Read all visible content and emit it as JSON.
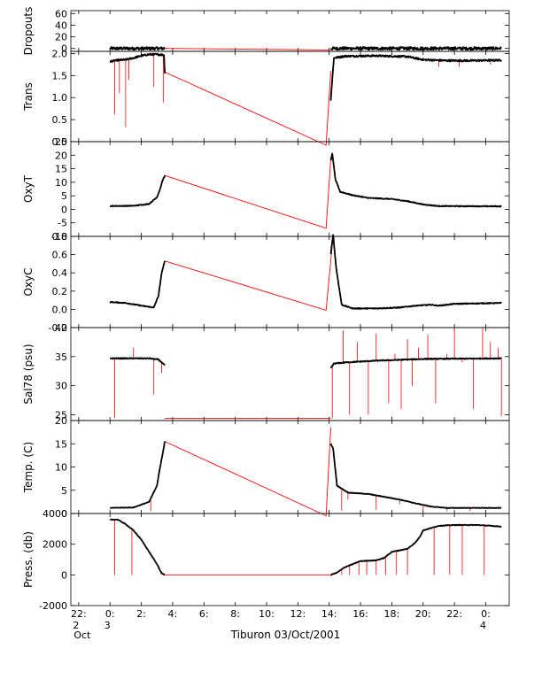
{
  "chart_data": {
    "type": "line",
    "x_axis": {
      "title": "Tiburon 03/Oct/2001",
      "range_hours": [
        -2.5,
        25.5
      ],
      "ticks": [
        {
          "h": -2,
          "label": "22:",
          "sub": "2",
          "sub2": "Oct"
        },
        {
          "h": 0,
          "label": "0:",
          "sub": "3"
        },
        {
          "h": 2,
          "label": "2:"
        },
        {
          "h": 4,
          "label": "4:"
        },
        {
          "h": 6,
          "label": "6:"
        },
        {
          "h": 8,
          "label": "8:"
        },
        {
          "h": 10,
          "label": "10:"
        },
        {
          "h": 12,
          "label": "12:"
        },
        {
          "h": 14,
          "label": "14:"
        },
        {
          "h": 16,
          "label": "16:"
        },
        {
          "h": 18,
          "label": "18:"
        },
        {
          "h": 20,
          "label": "20:"
        },
        {
          "h": 22,
          "label": "22:"
        },
        {
          "h": 24,
          "label": "0:",
          "sub": "4"
        }
      ]
    },
    "colors": {
      "data": "#000000",
      "flagged": "#ff0000"
    },
    "panels": [
      {
        "ylabel": "Dropouts",
        "ylim": [
          -5,
          65
        ],
        "yticks": [
          {
            "v": 0,
            "label": "0"
          },
          {
            "v": 20,
            "label": "20"
          },
          {
            "v": 40,
            "label": "40"
          },
          {
            "v": 60,
            "label": "60"
          }
        ],
        "black": [
          [
            [
              0,
              0
            ],
            [
              3.5,
              0
            ]
          ],
          [
            [
              14.1,
              0
            ],
            [
              25,
              0
            ]
          ]
        ],
        "red_line": [
          [
            3.5,
            0
          ],
          [
            14.1,
            -2.5
          ]
        ],
        "spikes": [],
        "noise": 2.5
      },
      {
        "ylabel": "Trans",
        "ylim": [
          0,
          2.05
        ],
        "yticks": [
          {
            "v": 0,
            "label": "0.0"
          },
          {
            "v": 0.5,
            "label": "0.5"
          },
          {
            "v": 1,
            "label": "1.0"
          },
          {
            "v": 1.5,
            "label": "1.5"
          },
          {
            "v": 2,
            "label": "2.0"
          }
        ],
        "black": [
          [
            [
              0,
              1.82
            ],
            [
              0.5,
              1.85
            ],
            [
              1,
              1.86
            ],
            [
              1.5,
              1.9
            ],
            [
              2,
              1.95
            ],
            [
              2.5,
              1.98
            ],
            [
              3.0,
              1.98
            ],
            [
              3.45,
              1.97
            ],
            [
              3.5,
              1.55
            ]
          ],
          [
            [
              14.1,
              0.95
            ],
            [
              14.3,
              1.9
            ],
            [
              15,
              1.94
            ],
            [
              17,
              1.95
            ],
            [
              19,
              1.93
            ],
            [
              20,
              1.86
            ],
            [
              21.5,
              1.84
            ],
            [
              23,
              1.84
            ],
            [
              25,
              1.85
            ]
          ]
        ],
        "red_line": [
          [
            3.5,
            1.58
          ],
          [
            13.8,
            -0.08
          ],
          [
            14.1,
            1.6
          ]
        ],
        "spikes": [
          [
            0.3,
            0.62
          ],
          [
            0.6,
            1.1
          ],
          [
            1.0,
            0.33
          ],
          [
            1.2,
            1.4
          ],
          [
            2.8,
            1.25
          ],
          [
            3.4,
            0.88
          ],
          [
            21.0,
            1.7
          ],
          [
            22.3,
            1.7
          ],
          [
            24.3,
            1.75
          ]
        ],
        "noise": 0.02
      },
      {
        "ylabel": "OxyT",
        "ylim": [
          -10,
          25
        ],
        "yticks": [
          {
            "v": -10,
            "label": "-10"
          },
          {
            "v": -5,
            "label": "-5"
          },
          {
            "v": 0,
            "label": "0"
          },
          {
            "v": 5,
            "label": "5"
          },
          {
            "v": 10,
            "label": "10"
          },
          {
            "v": 15,
            "label": "15"
          },
          {
            "v": 20,
            "label": "20"
          },
          {
            "v": 25,
            "label": "25"
          }
        ],
        "black": [
          [
            [
              0,
              1.2
            ],
            [
              1.5,
              1.3
            ],
            [
              2.5,
              2.0
            ],
            [
              3.0,
              4.5
            ],
            [
              3.2,
              7.5
            ],
            [
              3.35,
              10.5
            ],
            [
              3.5,
              12.5
            ]
          ],
          [
            [
              14.1,
              18
            ],
            [
              14.2,
              20.5
            ],
            [
              14.4,
              11
            ],
            [
              14.7,
              6.5
            ],
            [
              15.5,
              5.2
            ],
            [
              16.5,
              4.2
            ],
            [
              18,
              3.8
            ],
            [
              19,
              3.0
            ],
            [
              20,
              1.8
            ],
            [
              21,
              1.2
            ],
            [
              25,
              1.1
            ]
          ]
        ],
        "red_line": [
          [
            3.5,
            12.5
          ],
          [
            13.8,
            -7
          ],
          [
            14.1,
            18.5
          ]
        ],
        "spikes": [],
        "noise": 0.15
      },
      {
        "ylabel": "OxyC",
        "ylim": [
          -0.2,
          0.8
        ],
        "yticks": [
          {
            "v": -0.2,
            "label": "-0.2"
          },
          {
            "v": 0,
            "label": "0.0"
          },
          {
            "v": 0.2,
            "label": "0.2"
          },
          {
            "v": 0.4,
            "label": "0.4"
          },
          {
            "v": 0.6,
            "label": "0.6"
          },
          {
            "v": 0.8,
            "label": "0.8"
          }
        ],
        "black": [
          [
            [
              0,
              0.08
            ],
            [
              1,
              0.07
            ],
            [
              2,
              0.04
            ],
            [
              2.8,
              0.02
            ],
            [
              3.1,
              0.15
            ],
            [
              3.3,
              0.4
            ],
            [
              3.5,
              0.53
            ]
          ],
          [
            [
              14.1,
              0.6
            ],
            [
              14.25,
              0.82
            ],
            [
              14.45,
              0.45
            ],
            [
              14.8,
              0.05
            ],
            [
              15.5,
              0.01
            ],
            [
              17,
              0.01
            ],
            [
              18.5,
              0.02
            ],
            [
              19.5,
              0.04
            ],
            [
              20.5,
              0.05
            ],
            [
              21,
              0.04
            ],
            [
              22,
              0.06
            ],
            [
              25,
              0.07
            ]
          ]
        ],
        "red_line": [
          [
            3.5,
            0.53
          ],
          [
            13.8,
            -0.01
          ],
          [
            14.25,
            0.8
          ]
        ],
        "spikes": [],
        "noise": 0.005
      },
      {
        "ylabel": "Sal78 (psu)",
        "ylim": [
          24,
          40
        ],
        "yticks": [
          {
            "v": 25,
            "label": "25"
          },
          {
            "v": 30,
            "label": "30"
          },
          {
            "v": 35,
            "label": "35"
          },
          {
            "v": 40,
            "label": "40"
          }
        ],
        "black": [
          [
            [
              0,
              34.7
            ],
            [
              2.5,
              34.7
            ],
            [
              3.1,
              34.5
            ],
            [
              3.3,
              34.0
            ],
            [
              3.5,
              33.5
            ]
          ],
          [
            [
              14.1,
              33.0
            ],
            [
              14.3,
              33.8
            ],
            [
              15,
              34.0
            ],
            [
              17,
              34.3
            ],
            [
              20,
              34.6
            ],
            [
              25,
              34.7
            ]
          ]
        ],
        "red_line": [
          [
            3.5,
            24.4
          ],
          [
            14.1,
            24.4
          ]
        ],
        "spikes": [
          [
            0.3,
            24.4
          ],
          [
            1.5,
            36.5
          ],
          [
            2.8,
            28.5
          ],
          [
            3.3,
            32.2
          ],
          [
            14.2,
            24.4
          ],
          [
            14.9,
            39.5
          ],
          [
            15.3,
            25
          ],
          [
            15.8,
            37.5
          ],
          [
            16.5,
            25
          ],
          [
            17.0,
            39.0
          ],
          [
            17.8,
            27.0
          ],
          [
            18.2,
            35.5
          ],
          [
            18.6,
            26.0
          ],
          [
            19.0,
            38.0
          ],
          [
            19.3,
            30.0
          ],
          [
            19.7,
            36.5
          ],
          [
            20.3,
            38.8
          ],
          [
            20.8,
            27.0
          ],
          [
            21.5,
            35.5
          ],
          [
            22.0,
            40.0
          ],
          [
            22.5,
            34.0
          ],
          [
            23.2,
            26.0
          ],
          [
            23.8,
            40.0
          ],
          [
            24.3,
            37.5
          ],
          [
            24.8,
            36.5
          ],
          [
            25.0,
            24.8
          ]
        ],
        "noise": 0.08
      },
      {
        "ylabel": "Temp. (C)",
        "ylim": [
          0,
          20
        ],
        "yticks": [
          {
            "v": 0,
            "label": "0"
          },
          {
            "v": 5,
            "label": "5"
          },
          {
            "v": 10,
            "label": "10"
          },
          {
            "v": 15,
            "label": "15"
          },
          {
            "v": 20,
            "label": "20"
          }
        ],
        "black": [
          [
            [
              0,
              1.2
            ],
            [
              1.5,
              1.3
            ],
            [
              2.5,
              2.5
            ],
            [
              3.0,
              6
            ],
            [
              3.2,
              10
            ],
            [
              3.4,
              13.5
            ],
            [
              3.5,
              15.5
            ]
          ],
          [
            [
              14.1,
              15
            ],
            [
              14.25,
              14
            ],
            [
              14.5,
              6
            ],
            [
              15.2,
              4.5
            ],
            [
              16.5,
              4.2
            ],
            [
              17.5,
              3.6
            ],
            [
              18.5,
              3.0
            ],
            [
              19.5,
              2.2
            ],
            [
              20.5,
              1.5
            ],
            [
              21.5,
              1.2
            ],
            [
              25,
              1.2
            ]
          ]
        ],
        "red_line": [
          [
            3.5,
            15.5
          ],
          [
            13.8,
            -0.5
          ],
          [
            14.1,
            18.5
          ]
        ],
        "spikes": [
          [
            2.6,
            0.5
          ],
          [
            14.8,
            0.6
          ],
          [
            15.2,
            3.0
          ],
          [
            17.0,
            0.8
          ],
          [
            18.5,
            2.0
          ],
          [
            20.0,
            0.6
          ],
          [
            21.5,
            0.5
          ],
          [
            23.0,
            0.5
          ]
        ],
        "noise": 0.06
      },
      {
        "ylabel": "Press. (db)",
        "ylim": [
          -2000,
          4000
        ],
        "yticks": [
          {
            "v": -2000,
            "label": "-2000"
          },
          {
            "v": 0,
            "label": "0"
          },
          {
            "v": 2000,
            "label": "2000"
          },
          {
            "v": 4000,
            "label": "4000"
          }
        ],
        "black": [
          [
            [
              0,
              3600
            ],
            [
              0.5,
              3600
            ],
            [
              1.0,
              3300
            ],
            [
              1.5,
              2900
            ],
            [
              2.0,
              2300
            ],
            [
              2.5,
              1500
            ],
            [
              3.0,
              700
            ],
            [
              3.3,
              100
            ],
            [
              3.5,
              0
            ]
          ],
          [
            [
              14.1,
              0
            ],
            [
              14.5,
              150
            ],
            [
              15.0,
              500
            ],
            [
              15.5,
              700
            ],
            [
              16.0,
              900
            ],
            [
              17.0,
              950
            ],
            [
              17.5,
              1100
            ],
            [
              18.0,
              1500
            ],
            [
              18.5,
              1600
            ],
            [
              19.0,
              1700
            ],
            [
              19.5,
              2100
            ],
            [
              19.8,
              2500
            ],
            [
              20.0,
              2900
            ],
            [
              21.0,
              3200
            ],
            [
              22.0,
              3250
            ],
            [
              23.5,
              3250
            ],
            [
              24.3,
              3200
            ],
            [
              25,
              3150
            ]
          ]
        ],
        "red_line": [
          [
            3.5,
            0
          ],
          [
            14.1,
            0
          ]
        ],
        "spikes": [
          [
            0.3,
            0
          ],
          [
            1.4,
            0
          ],
          [
            14.8,
            0
          ],
          [
            15.3,
            0
          ],
          [
            15.9,
            0
          ],
          [
            16.4,
            0
          ],
          [
            17.0,
            0
          ],
          [
            17.6,
            0
          ],
          [
            18.3,
            0
          ],
          [
            19.0,
            0
          ],
          [
            20.7,
            0
          ],
          [
            21.7,
            0
          ],
          [
            22.5,
            0
          ],
          [
            23.9,
            0
          ]
        ],
        "noise": 20
      }
    ]
  }
}
